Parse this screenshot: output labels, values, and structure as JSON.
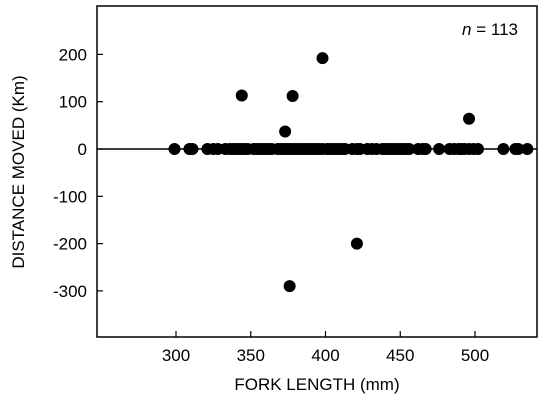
{
  "chart_data": {
    "type": "scatter",
    "xlabel": "FORK LENGTH (mm)",
    "ylabel": "DISTANCE MOVED (Km)",
    "annotation": {
      "italic": "n",
      "text": " = 113"
    },
    "xlim": [
      250,
      540
    ],
    "ylim": [
      -400,
      300
    ],
    "xticks": [
      300,
      350,
      400,
      450,
      500
    ],
    "xtick_labels": [
      "300",
      "350",
      "400",
      "450",
      "500"
    ],
    "yticks": [
      200,
      100,
      0,
      -100,
      -200,
      -300
    ],
    "ytick_labels": [
      "200",
      "100",
      "0",
      "-100",
      "-200",
      "-300"
    ],
    "reference_line_y": 0,
    "marker_color": "#000000",
    "points": [
      {
        "x": 299,
        "y": 0
      },
      {
        "x": 309,
        "y": 0
      },
      {
        "x": 311,
        "y": 0
      },
      {
        "x": 321,
        "y": 0
      },
      {
        "x": 325,
        "y": 0
      },
      {
        "x": 328,
        "y": 0
      },
      {
        "x": 333,
        "y": 0
      },
      {
        "x": 336,
        "y": 0
      },
      {
        "x": 338,
        "y": 0
      },
      {
        "x": 340,
        "y": 0
      },
      {
        "x": 342,
        "y": 0
      },
      {
        "x": 344,
        "y": 0
      },
      {
        "x": 346,
        "y": 0
      },
      {
        "x": 348,
        "y": 0
      },
      {
        "x": 352,
        "y": 0
      },
      {
        "x": 354,
        "y": 0
      },
      {
        "x": 356,
        "y": 0
      },
      {
        "x": 358,
        "y": 0
      },
      {
        "x": 360,
        "y": 0
      },
      {
        "x": 362,
        "y": 0
      },
      {
        "x": 364,
        "y": 0
      },
      {
        "x": 368,
        "y": 0
      },
      {
        "x": 370,
        "y": 0
      },
      {
        "x": 372,
        "y": 0
      },
      {
        "x": 374,
        "y": 0
      },
      {
        "x": 376,
        "y": 0
      },
      {
        "x": 378,
        "y": 0
      },
      {
        "x": 380,
        "y": 0
      },
      {
        "x": 382,
        "y": 0
      },
      {
        "x": 384,
        "y": 0
      },
      {
        "x": 386,
        "y": 0
      },
      {
        "x": 388,
        "y": 0
      },
      {
        "x": 390,
        "y": 0
      },
      {
        "x": 392,
        "y": 0
      },
      {
        "x": 394,
        "y": 0
      },
      {
        "x": 396,
        "y": 0
      },
      {
        "x": 398,
        "y": 0
      },
      {
        "x": 401,
        "y": 0
      },
      {
        "x": 403,
        "y": 0
      },
      {
        "x": 405,
        "y": 0
      },
      {
        "x": 407,
        "y": 0
      },
      {
        "x": 409,
        "y": 0
      },
      {
        "x": 411,
        "y": 0
      },
      {
        "x": 413,
        "y": 0
      },
      {
        "x": 418,
        "y": 0
      },
      {
        "x": 421,
        "y": 0
      },
      {
        "x": 423,
        "y": 0
      },
      {
        "x": 428,
        "y": 0
      },
      {
        "x": 431,
        "y": 0
      },
      {
        "x": 434,
        "y": 0
      },
      {
        "x": 438,
        "y": 0
      },
      {
        "x": 440,
        "y": 0
      },
      {
        "x": 442,
        "y": 0
      },
      {
        "x": 444,
        "y": 0
      },
      {
        "x": 446,
        "y": 0
      },
      {
        "x": 448,
        "y": 0
      },
      {
        "x": 450,
        "y": 0
      },
      {
        "x": 452,
        "y": 0
      },
      {
        "x": 454,
        "y": 0
      },
      {
        "x": 456,
        "y": 0
      },
      {
        "x": 462,
        "y": 0
      },
      {
        "x": 465,
        "y": 0
      },
      {
        "x": 467,
        "y": 0
      },
      {
        "x": 476,
        "y": 0
      },
      {
        "x": 483,
        "y": 0
      },
      {
        "x": 486,
        "y": 0
      },
      {
        "x": 489,
        "y": 0
      },
      {
        "x": 491,
        "y": 0
      },
      {
        "x": 493,
        "y": 0
      },
      {
        "x": 496,
        "y": 0
      },
      {
        "x": 499,
        "y": 0
      },
      {
        "x": 502,
        "y": 0
      },
      {
        "x": 519,
        "y": 0
      },
      {
        "x": 527,
        "y": 0
      },
      {
        "x": 529,
        "y": 0
      },
      {
        "x": 535,
        "y": 0
      },
      {
        "x": 344,
        "y": 113
      },
      {
        "x": 373,
        "y": 37
      },
      {
        "x": 378,
        "y": 112
      },
      {
        "x": 398,
        "y": 192
      },
      {
        "x": 496,
        "y": 64
      },
      {
        "x": 421,
        "y": -200
      },
      {
        "x": 376,
        "y": -290
      }
    ]
  }
}
